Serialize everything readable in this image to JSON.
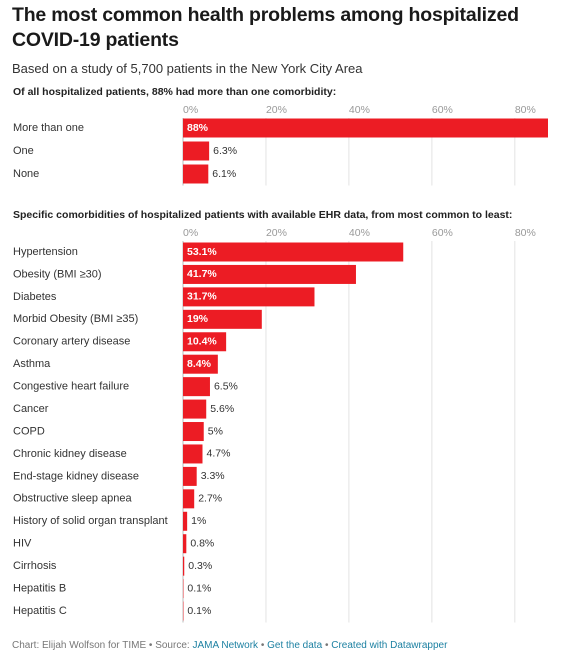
{
  "header": {
    "title": "The most common health problems among hospitalized COVID-19 patients",
    "subtitle": "Based on a study of 5,700 patients in the New York City Area"
  },
  "chart_data": [
    {
      "type": "bar",
      "orientation": "horizontal",
      "title": "Of all hospitalized patients, 88% had more than one comorbidity:",
      "categories": [
        "More than one",
        "One",
        "None"
      ],
      "values": [
        88,
        6.3,
        6.1
      ],
      "value_labels": [
        "88%",
        "6.3%",
        "6.1%"
      ],
      "color": "#ec1c24",
      "xlim": [
        0,
        88
      ],
      "xticks": [
        {
          "value": 0,
          "label": "0%"
        },
        {
          "value": 20,
          "label": "20%"
        },
        {
          "value": 40,
          "label": "40%"
        },
        {
          "value": 60,
          "label": "60%"
        },
        {
          "value": 80,
          "label": "80%"
        }
      ],
      "grid": true
    },
    {
      "type": "bar",
      "orientation": "horizontal",
      "title": "Specific comorbidities of hospitalized patients with available EHR data, from most common to least:",
      "categories": [
        "Hypertension",
        "Obesity (BMI ≥30)",
        "Diabetes",
        "Morbid Obesity (BMI ≥35)",
        "Coronary artery disease",
        "Asthma",
        "Congestive heart failure",
        "Cancer",
        "COPD",
        "Chronic kidney disease",
        "End-stage kidney disease",
        "Obstructive sleep apnea",
        "History of solid organ transplant",
        "HIV",
        "Cirrhosis",
        "Hepatitis B",
        "Hepatitis C"
      ],
      "values": [
        53.1,
        41.7,
        31.7,
        19,
        10.4,
        8.4,
        6.5,
        5.6,
        5,
        4.7,
        3.3,
        2.7,
        1,
        0.8,
        0.3,
        0.1,
        0.1
      ],
      "value_labels": [
        "53.1%",
        "41.7%",
        "31.7%",
        "19%",
        "10.4%",
        "8.4%",
        "6.5%",
        "5.6%",
        "5%",
        "4.7%",
        "3.3%",
        "2.7%",
        "1%",
        "0.8%",
        "0.3%",
        "0.1%",
        "0.1%"
      ],
      "color": "#ec1c24",
      "xlim": [
        0,
        88
      ],
      "xticks": [
        {
          "value": 0,
          "label": "0%"
        },
        {
          "value": 20,
          "label": "20%"
        },
        {
          "value": 40,
          "label": "40%"
        },
        {
          "value": 60,
          "label": "60%"
        },
        {
          "value": 80,
          "label": "80%"
        }
      ],
      "grid": true
    }
  ],
  "footer": {
    "credit": "Chart: Elijah Wolfson for TIME",
    "separator": "•",
    "source_label": "Source:",
    "source": "JAMA Network",
    "get_data": "Get the data",
    "created_with": "Created with Datawrapper"
  }
}
